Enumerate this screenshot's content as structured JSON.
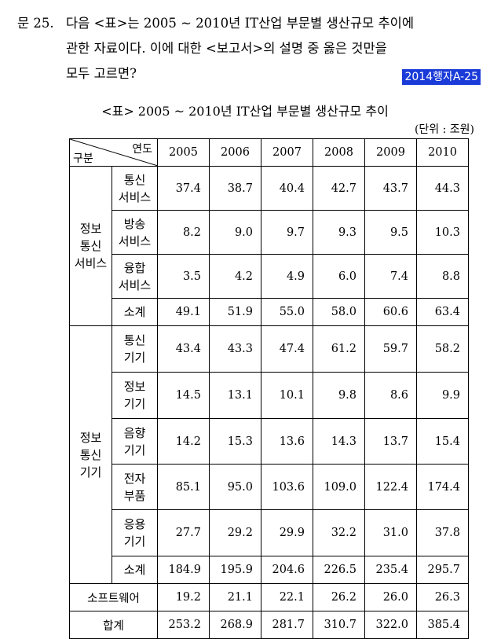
{
  "question": {
    "number": "문 25.",
    "line1": "다음 <표>는 2005 ~ 2010년 IT산업 부문별 생산규모 추이에",
    "line2": "관한 자료이다. 이에 대한 <보고서>의 설명 중 옳은 것만을",
    "line3": "모두 고르면?",
    "source_tag": "2014행자A-25"
  },
  "table": {
    "title": "<표> 2005 ~ 2010년 IT산업 부문별 생산규모 추이",
    "unit": "(단위 : 조원)",
    "header_category": "구분",
    "header_year": "연도",
    "years": [
      "2005",
      "2006",
      "2007",
      "2008",
      "2009",
      "2010"
    ],
    "groups": [
      {
        "name": "정보 통신 서비스",
        "rows": [
          {
            "label": "통신 서비스",
            "values": [
              "37.4",
              "38.7",
              "40.4",
              "42.7",
              "43.7",
              "44.3"
            ]
          },
          {
            "label": "방송 서비스",
            "values": [
              "8.2",
              "9.0",
              "9.7",
              "9.3",
              "9.5",
              "10.3"
            ]
          },
          {
            "label": "융합 서비스",
            "values": [
              "3.5",
              "4.2",
              "4.9",
              "6.0",
              "7.4",
              "8.8"
            ]
          },
          {
            "label": "소계",
            "values": [
              "49.1",
              "51.9",
              "55.0",
              "58.0",
              "60.6",
              "63.4"
            ]
          }
        ]
      },
      {
        "name": "정보 통신 기기",
        "rows": [
          {
            "label": "통신 기기",
            "values": [
              "43.4",
              "43.3",
              "47.4",
              "61.2",
              "59.7",
              "58.2"
            ]
          },
          {
            "label": "정보 기기",
            "values": [
              "14.5",
              "13.1",
              "10.1",
              "9.8",
              "8.6",
              "9.9"
            ]
          },
          {
            "label": "음향 기기",
            "values": [
              "14.2",
              "15.3",
              "13.6",
              "14.3",
              "13.7",
              "15.4"
            ]
          },
          {
            "label": "전자 부품",
            "values": [
              "85.1",
              "95.0",
              "103.6",
              "109.0",
              "122.4",
              "174.4"
            ]
          },
          {
            "label": "응용 기기",
            "values": [
              "27.7",
              "29.2",
              "29.9",
              "32.2",
              "31.0",
              "37.8"
            ]
          },
          {
            "label": "소계",
            "values": [
              "184.9",
              "195.9",
              "204.6",
              "226.5",
              "235.4",
              "295.7"
            ]
          }
        ]
      }
    ],
    "software": {
      "label": "소프트웨어",
      "values": [
        "19.2",
        "21.1",
        "22.1",
        "26.2",
        "26.0",
        "26.3"
      ]
    },
    "total": {
      "label": "합계",
      "values": [
        "253.2",
        "268.9",
        "281.7",
        "310.7",
        "322.0",
        "385.4"
      ]
    }
  }
}
